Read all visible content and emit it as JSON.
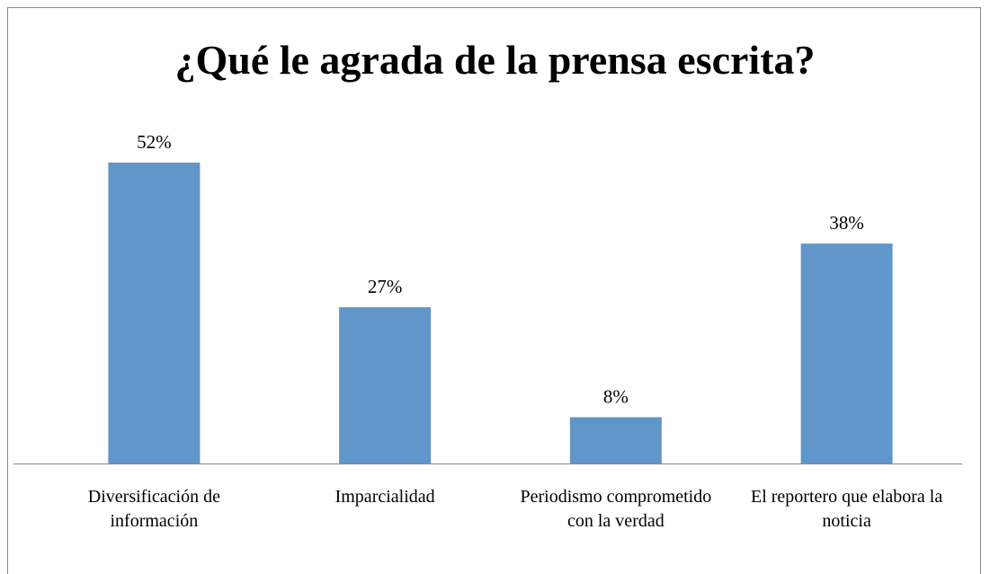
{
  "chart_data": {
    "type": "bar",
    "title": "¿Qué le agrada de la prensa escrita?",
    "categories": [
      "Diversificación de información",
      "Imparcialidad",
      "Periodismo comprometido con la verdad",
      "El reportero que elabora la noticia"
    ],
    "values": [
      52,
      27,
      8,
      38
    ],
    "value_labels": [
      "52%",
      "27%",
      "8%",
      "38%"
    ],
    "color": "#6096c9"
  }
}
